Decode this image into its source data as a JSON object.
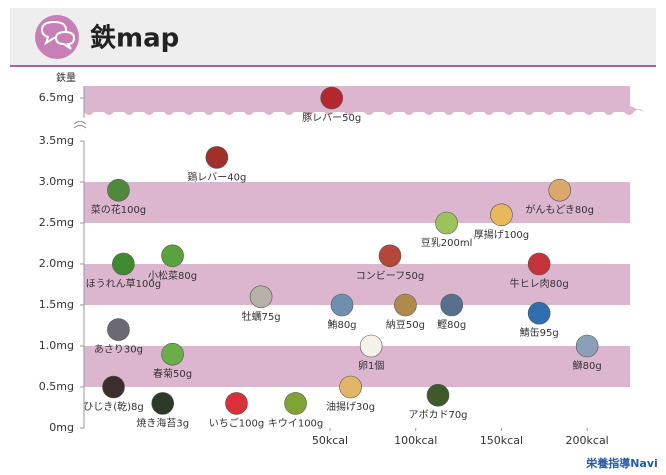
{
  "chart_data": {
    "type": "scatter",
    "title": "鉄map",
    "ylabel": "鉄量",
    "labels": [
      "豚レバー50g",
      "鶏レバー40g",
      "菜の花100g",
      "小松菜80g",
      "ほうれん草100g",
      "あさり30g",
      "春菊50g",
      "ひじき(乾)8g",
      "焼き海苔3g",
      "いちご100g",
      "牡蠣75g",
      "鮪80g",
      "納豆50g",
      "鰹80g",
      "鯖缶95g",
      "鰤80g",
      "卵1個",
      "油揚げ30g",
      "キウイ100g",
      "アボカド70g",
      "コンビーフ50g",
      "豆乳200ml",
      "厚揚げ100g",
      "がんもどき80g",
      "牛ヒレ肉80g"
    ],
    "x": [
      51,
      27,
      7,
      18,
      8,
      7,
      18,
      6,
      16,
      31,
      36,
      57,
      94,
      121,
      172,
      200,
      74,
      62,
      43,
      113,
      85,
      118,
      150,
      184,
      172
    ],
    "values": [
      6.5,
      3.3,
      2.9,
      2.1,
      2.0,
      1.2,
      0.9,
      0.5,
      0.3,
      0.3,
      1.6,
      1.5,
      1.5,
      1.5,
      1.4,
      1.0,
      1.0,
      0.5,
      0.3,
      0.4,
      2.1,
      2.5,
      2.6,
      2.9,
      2.0
    ],
    "colors": [
      "#b3282d",
      "#a0302a",
      "#4f8a3a",
      "#5aa33c",
      "#3f8a2f",
      "#6b6a73",
      "#6aae4a",
      "#3a2f2a",
      "#2d3a2a",
      "#d9303a",
      "#b7b2a8",
      "#6f8fae",
      "#b08a4a",
      "#58708f",
      "#2f6fb0",
      "#8aa0b8",
      "#f4f1ea",
      "#e0b567",
      "#7fa337",
      "#3f5a2a",
      "#b5473a",
      "#9cc35a",
      "#e8b85a",
      "#d9a86a",
      "#c4323a"
    ],
    "xlim": [
      0,
      225
    ],
    "xticks": [
      {
        "value": 50,
        "label": "50kcal"
      },
      {
        "value": 100,
        "label": "100kcal"
      },
      {
        "value": 150,
        "label": "150kcal"
      },
      {
        "value": 200,
        "label": "200kcal"
      }
    ],
    "ylim": [
      0,
      6.5
    ],
    "yticks": [
      {
        "value": 0,
        "label": "0mg"
      },
      {
        "value": 0.5,
        "label": "0.5mg"
      },
      {
        "value": 1.0,
        "label": "1.0mg"
      },
      {
        "value": 1.5,
        "label": "1.5mg"
      },
      {
        "value": 2.0,
        "label": "2.0mg"
      },
      {
        "value": 2.5,
        "label": "2.5mg"
      },
      {
        "value": 3.0,
        "label": "3.0mg"
      },
      {
        "value": 3.5,
        "label": "3.5mg"
      },
      {
        "value": 6.5,
        "label": "6.5mg"
      }
    ],
    "axis_break": true,
    "band_color": "#dcb6cf",
    "footer": "栄養指導Navi"
  }
}
